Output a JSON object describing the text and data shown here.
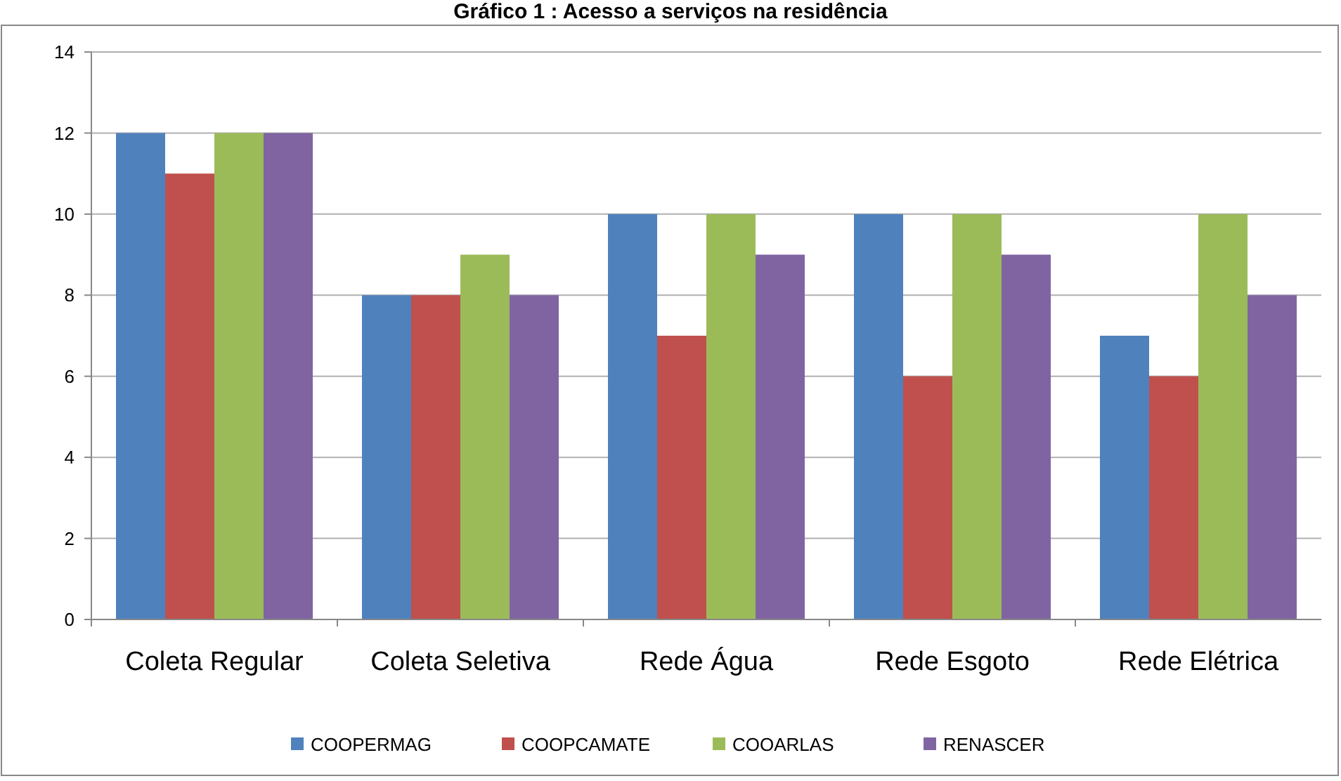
{
  "chart_data": {
    "type": "bar",
    "title": "Gráfico 1 : Acesso a serviços na residência",
    "categories": [
      "Coleta Regular",
      "Coleta Seletiva",
      "Rede Água",
      "Rede Esgoto",
      "Rede Elétrica"
    ],
    "series": [
      {
        "name": "COOPERMAG",
        "color": "#4f81bd",
        "values": [
          12,
          8,
          10,
          10,
          7
        ]
      },
      {
        "name": "COOPCAMATE",
        "color": "#c0504d",
        "values": [
          11,
          8,
          7,
          6,
          6
        ]
      },
      {
        "name": "COOARLAS",
        "color": "#9bbb59",
        "values": [
          12,
          9,
          10,
          10,
          10
        ]
      },
      {
        "name": "RENASCER",
        "color": "#8064a2",
        "values": [
          12,
          8,
          9,
          9,
          8
        ]
      }
    ],
    "ylim": [
      0,
      14
    ],
    "yticks": [
      0,
      2,
      4,
      6,
      8,
      10,
      12,
      14
    ],
    "grid": "y",
    "legend": "bottom"
  }
}
